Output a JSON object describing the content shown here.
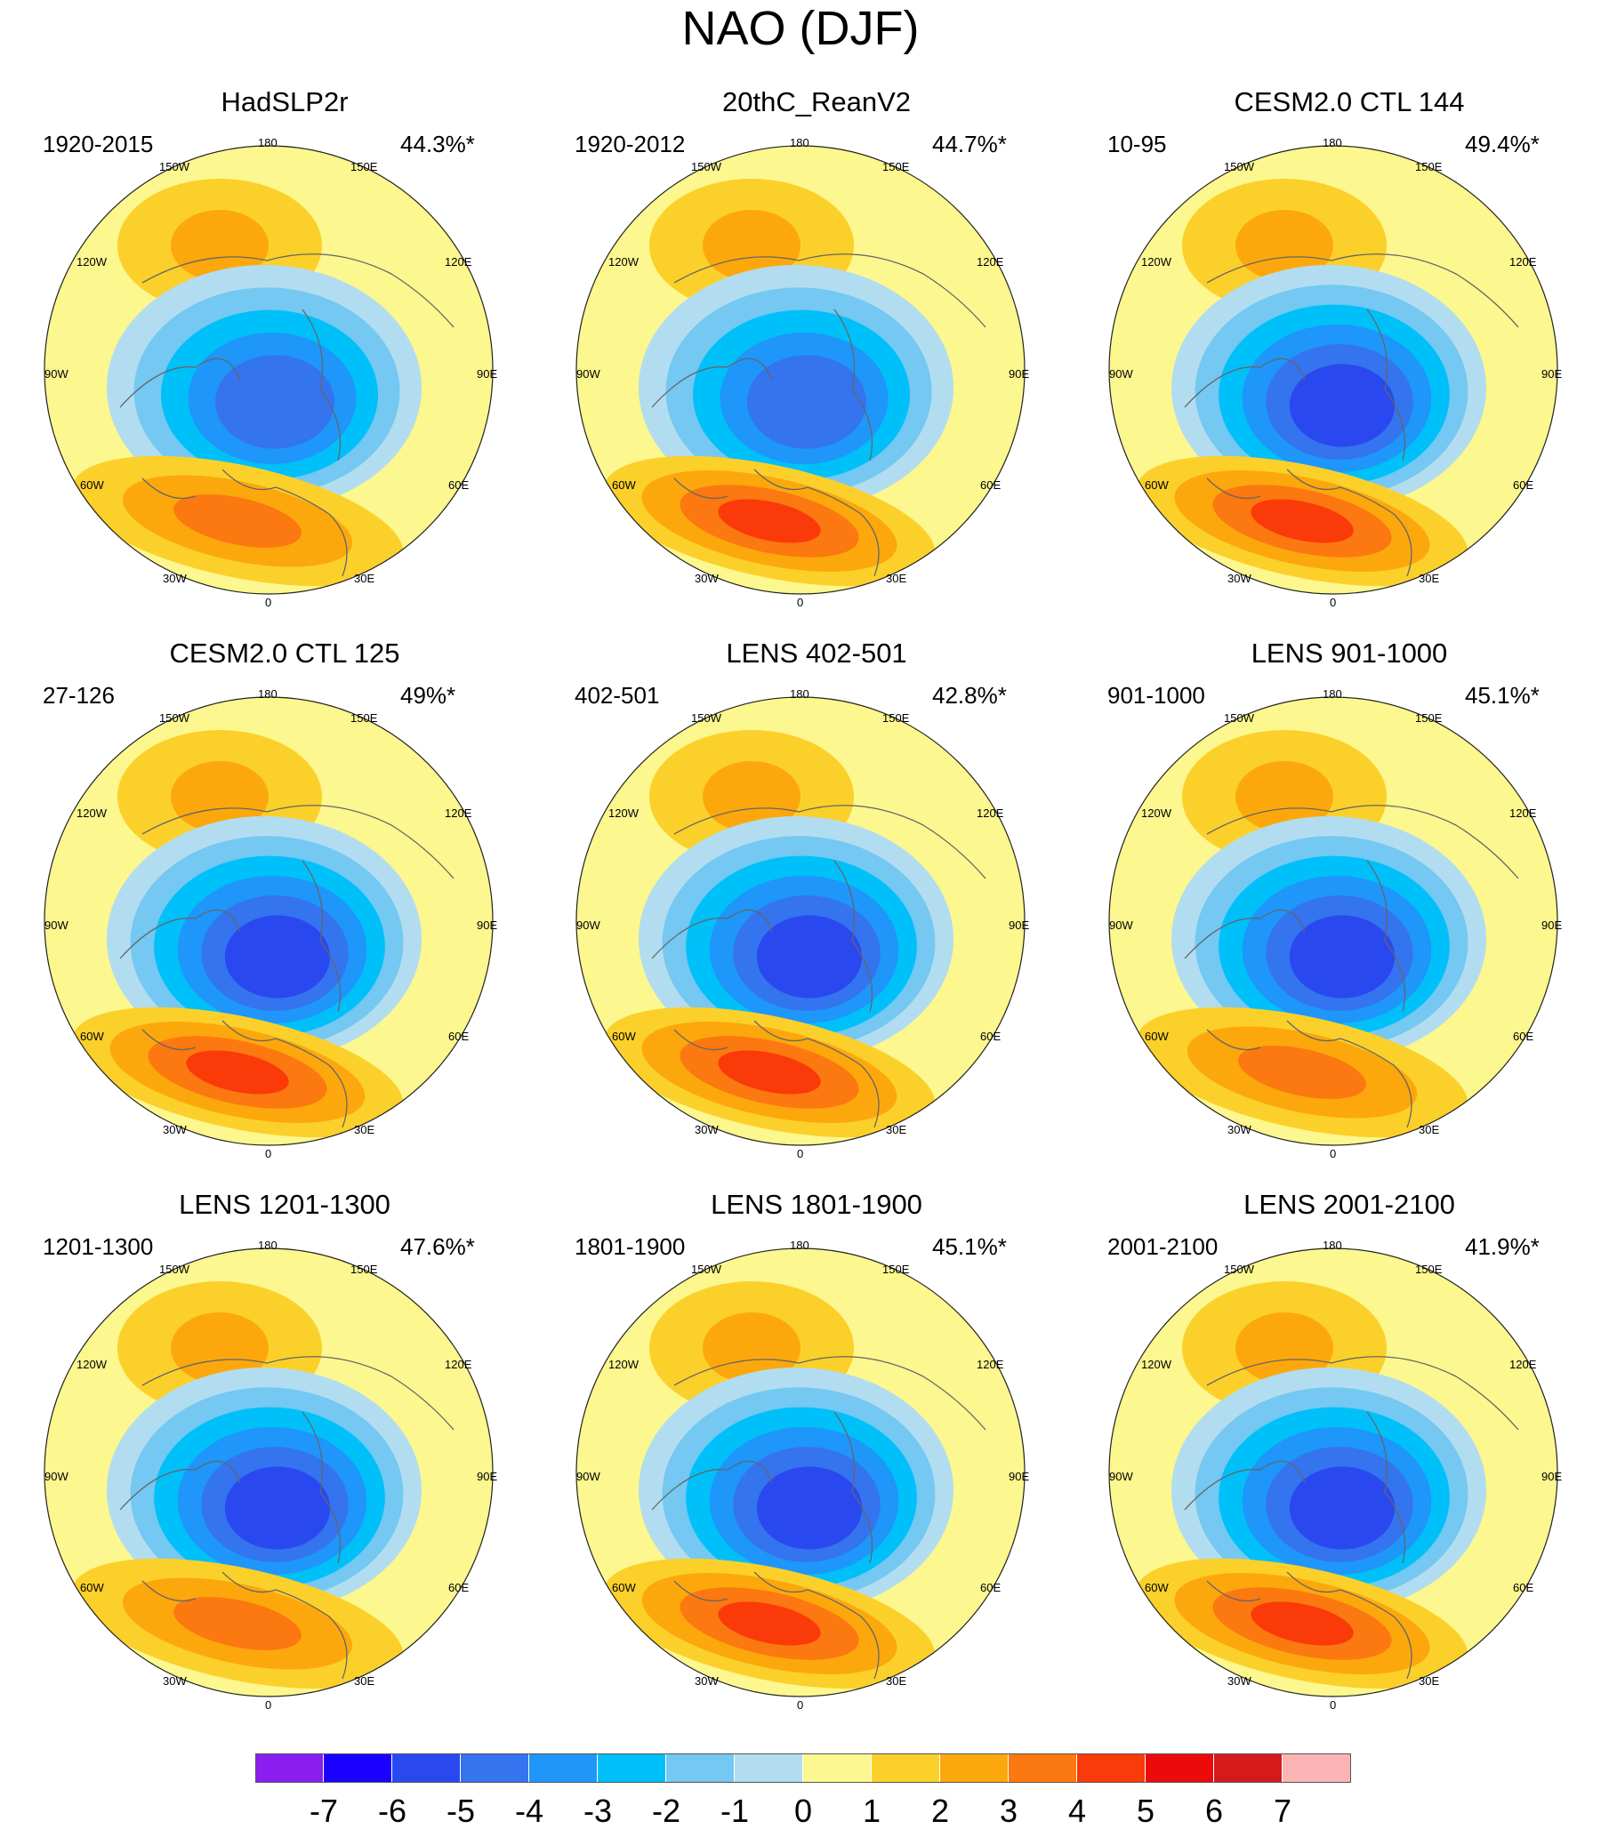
{
  "figure_title": "NAO (DJF)",
  "longitude_labels": [
    "180",
    "150W",
    "150E",
    "120W",
    "120E",
    "90W",
    "90E",
    "60W",
    "60E",
    "30W",
    "30E",
    "0"
  ],
  "panels": [
    {
      "title": "HadSLP2r",
      "period": "1920-2015",
      "variance": "44.3%*"
    },
    {
      "title": "20thC_ReanV2",
      "period": "1920-2012",
      "variance": "44.7%*"
    },
    {
      "title": "CESM2.0 CTL 144",
      "period": "10-95",
      "variance": "49.4%*"
    },
    {
      "title": "CESM2.0 CTL 125",
      "period": "27-126",
      "variance": "49%*"
    },
    {
      "title": "LENS 402-501",
      "period": "402-501",
      "variance": "42.8%*"
    },
    {
      "title": "LENS 901-1000",
      "period": "901-1000",
      "variance": "45.1%*"
    },
    {
      "title": "LENS 1201-1300",
      "period": "1201-1300",
      "variance": "47.6%*"
    },
    {
      "title": "LENS 1801-1900",
      "period": "1801-1900",
      "variance": "45.1%*"
    },
    {
      "title": "LENS 2001-2100",
      "period": "2001-2100",
      "variance": "41.9%*"
    }
  ],
  "colorbar": {
    "colors": [
      "#8a1ef0",
      "#1a00ff",
      "#2a48f0",
      "#3474ee",
      "#1e96fa",
      "#00c0fa",
      "#74c8f2",
      "#b2ddf0",
      "#fcf78e",
      "#fcd02a",
      "#fca80c",
      "#fc7810",
      "#fa3a08",
      "#ec0a0a",
      "#d41a1a",
      "#fcb4b4"
    ],
    "ticks": [
      "-7",
      "-6",
      "-5",
      "-4",
      "-3",
      "-2",
      "-1",
      "0",
      "1",
      "2",
      "3",
      "4",
      "5",
      "6",
      "7"
    ]
  },
  "chart_data": {
    "type": "polar-stereographic contour maps",
    "title": "NAO (DJF)",
    "levels": [
      -7,
      -6,
      -5,
      -4,
      -3,
      -2,
      -1,
      0,
      1,
      2,
      3,
      4,
      5,
      6,
      7
    ],
    "panels": [
      {
        "name": "HadSLP2r",
        "arctic_min_level": -5,
        "atlantic_max_level": 3
      },
      {
        "name": "20thC_ReanV2",
        "arctic_min_level": -5,
        "atlantic_max_level": 4
      },
      {
        "name": "CESM2.0 CTL 144",
        "arctic_min_level": -6,
        "atlantic_max_level": 4
      },
      {
        "name": "CESM2.0 CTL 125",
        "arctic_min_level": -6,
        "atlantic_max_level": 4
      },
      {
        "name": "LENS 402-501",
        "arctic_min_level": -6,
        "atlantic_max_level": 4
      },
      {
        "name": "LENS 901-1000",
        "arctic_min_level": -6,
        "atlantic_max_level": 3
      },
      {
        "name": "LENS 1201-1300",
        "arctic_min_level": -6,
        "atlantic_max_level": 3
      },
      {
        "name": "LENS 1801-1900",
        "arctic_min_level": -6,
        "atlantic_max_level": 4
      },
      {
        "name": "LENS 2001-2100",
        "arctic_min_level": -6,
        "atlantic_max_level": 4
      }
    ]
  }
}
